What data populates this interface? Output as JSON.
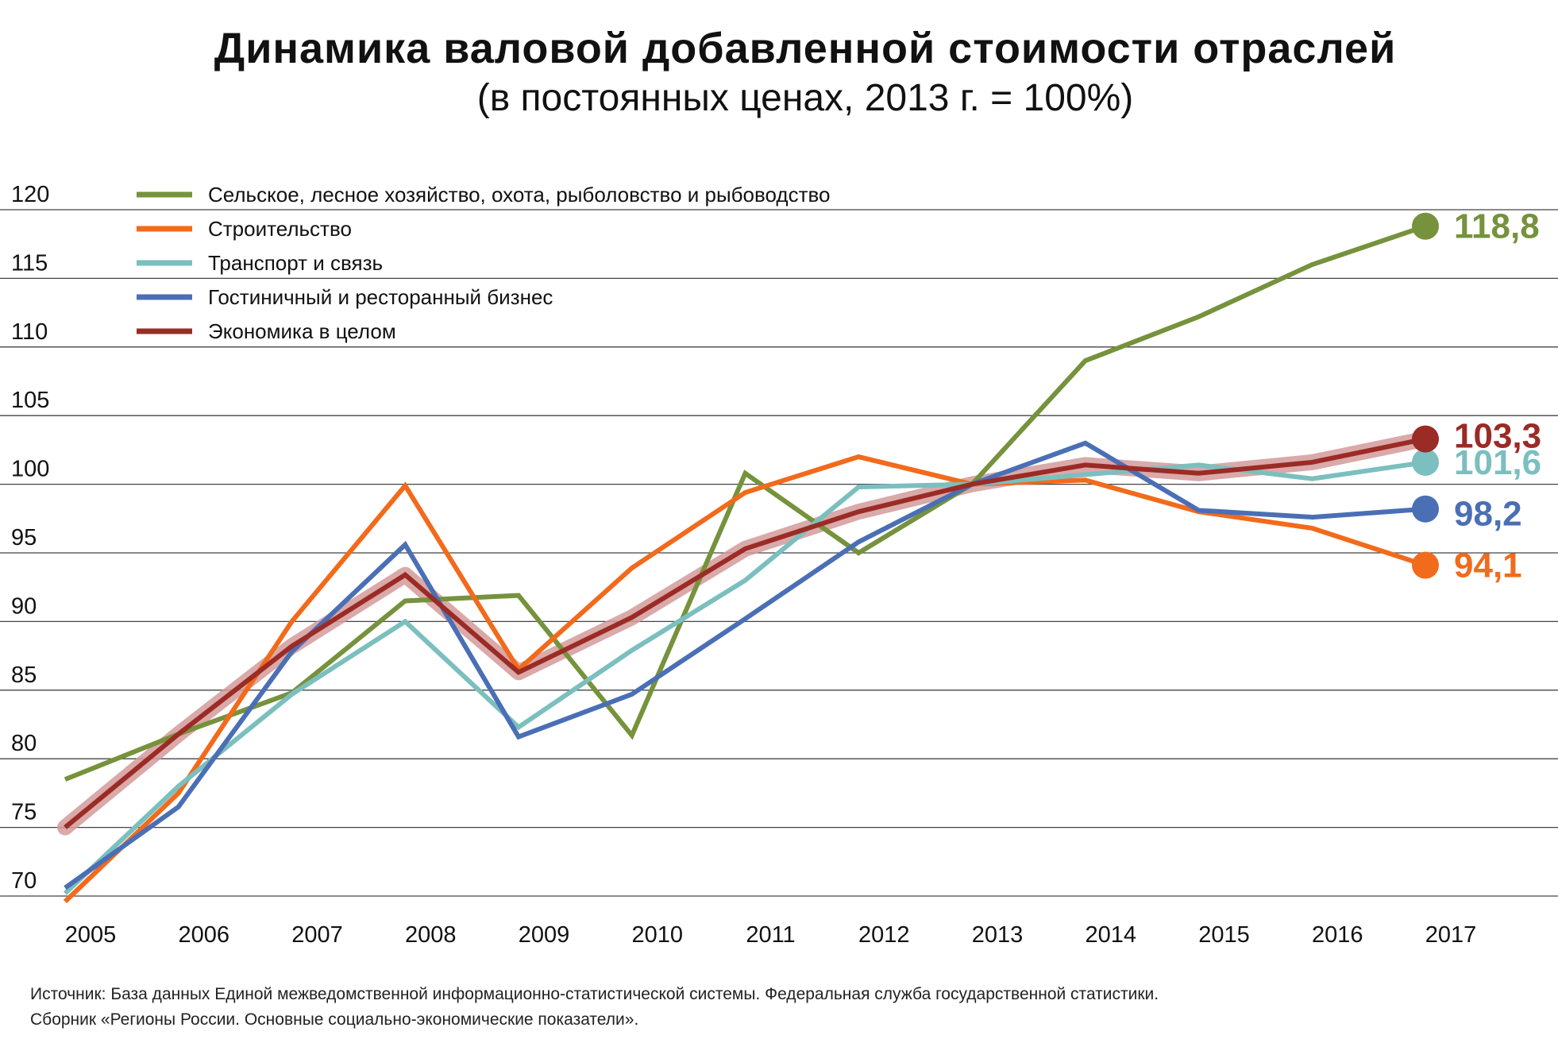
{
  "title": "Динамика валовой добавленной стоимости отраслей",
  "subtitle": "(в постоянных ценах, 2013 г. = 100%)",
  "source": [
    "Источник: База данных Единой межведомственной информационно-статистической системы. Федеральная служба государственной статистики.",
    "Сборник «Регионы России. Основные социально-экономические показатели»."
  ],
  "chart_data": {
    "type": "line",
    "title": "Динамика валовой добавленной стоимости отраслей",
    "subtitle": "(в постоянных ценах, 2013 г. = 100%)",
    "xlabel": "",
    "ylabel": "",
    "x": [
      "2005",
      "2006",
      "2007",
      "2008",
      "2009",
      "2010",
      "2011",
      "2012",
      "2013",
      "2014",
      "2015",
      "2016",
      "2017"
    ],
    "y_ticks": [
      "120",
      "115",
      "110",
      "105",
      "100",
      "95",
      "90",
      "85",
      "80",
      "75",
      "70"
    ],
    "ylim": [
      70,
      120
    ],
    "grid": true,
    "legend_position": "top-left",
    "series": [
      {
        "name": "Сельское, лесное хозяйство, охота, рыболовство и рыбоводство",
        "color": "#76923c",
        "values": [
          78.5,
          81.8,
          84.8,
          91.5,
          91.9,
          81.7,
          100.8,
          95.0,
          100.0,
          109.0,
          112.2,
          116.0,
          118.8
        ],
        "end_label": "118,8"
      },
      {
        "name": "Строительство",
        "color": "#f26a1b",
        "values": [
          69.6,
          77.5,
          90.0,
          99.9,
          86.5,
          93.9,
          99.4,
          102.0,
          100.0,
          100.3,
          98.0,
          96.8,
          94.1
        ],
        "end_label": "94,1"
      },
      {
        "name": "Транспорт и связь",
        "color": "#7bbfbf",
        "values": [
          70.2,
          78.0,
          84.7,
          90.0,
          82.3,
          87.9,
          93.0,
          99.8,
          100.0,
          100.7,
          101.4,
          100.4,
          101.6
        ],
        "end_label": "101,6"
      },
      {
        "name": "Гостиничный и ресторанный бизнес",
        "color": "#4a6fb5",
        "values": [
          70.6,
          76.5,
          87.8,
          95.6,
          81.6,
          84.7,
          90.2,
          95.8,
          100.0,
          103.0,
          98.1,
          97.6,
          98.2
        ],
        "end_label": "98,2"
      },
      {
        "name": "Экономика в целом",
        "color": "#9b2b25",
        "halo_color": "#d49a9a",
        "values": [
          75.0,
          81.8,
          88.2,
          93.4,
          86.3,
          90.3,
          95.3,
          98.0,
          100.0,
          101.4,
          100.8,
          101.6,
          103.3
        ],
        "end_label": "103,3"
      }
    ]
  }
}
